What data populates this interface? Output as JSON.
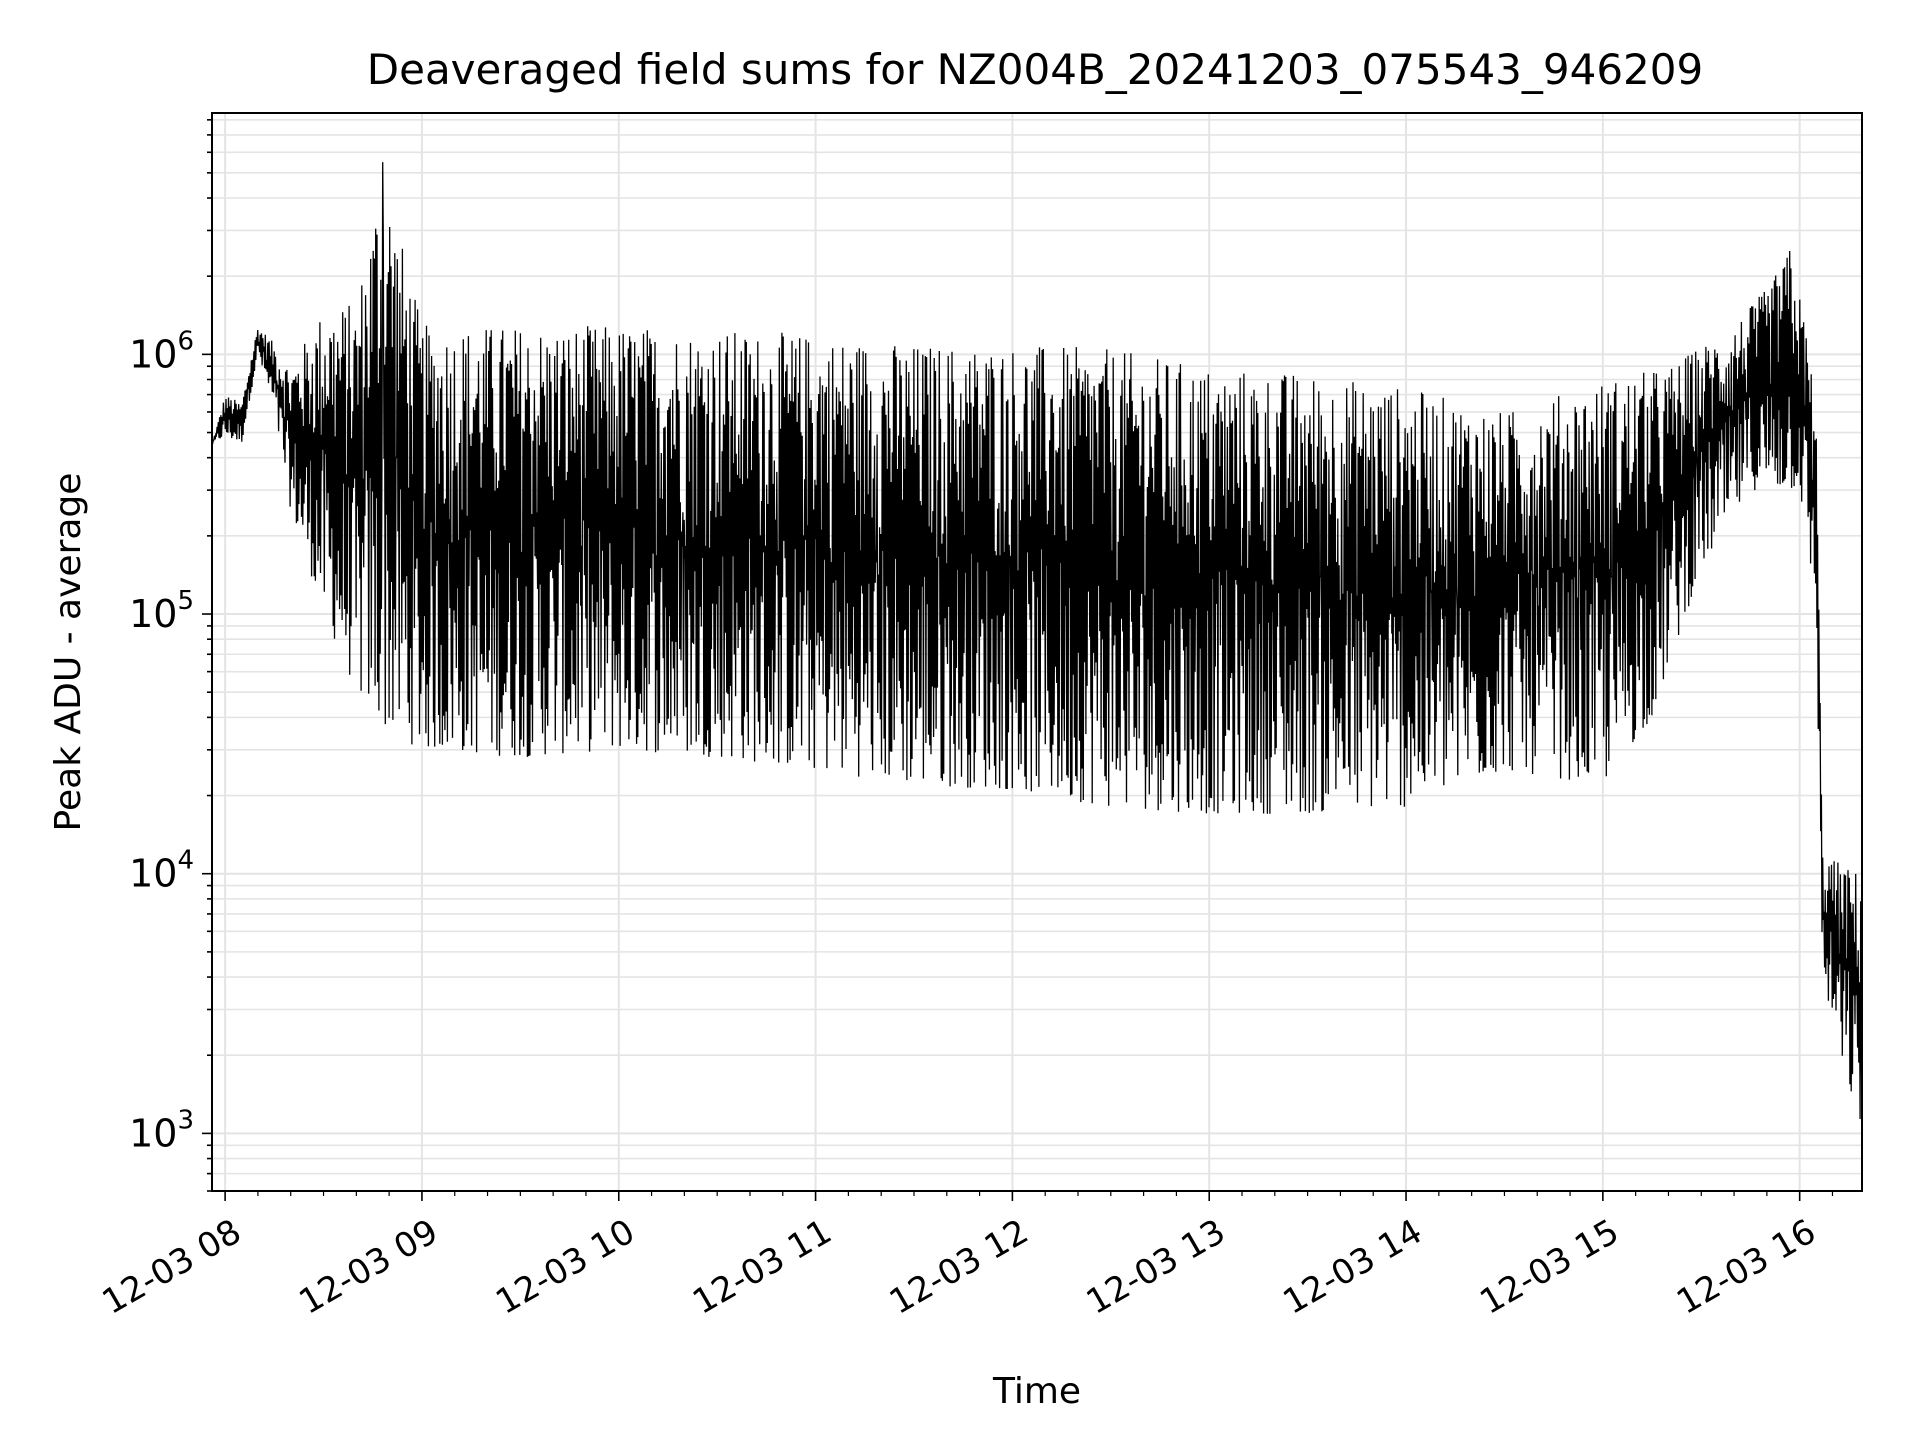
{
  "chart_data": {
    "type": "line",
    "title": "Deaveraged field sums for NZ004B_20241203_075543_946209",
    "xlabel": "Time",
    "ylabel": "Peak ADU - average",
    "xscale": "time",
    "yscale": "log",
    "xlim": [
      "2024-12-03 07:56",
      "2024-12-03 16:19"
    ],
    "ylim": [
      600,
      8500000
    ],
    "grid": true,
    "grid_minor": true,
    "line_color": "#000000",
    "x_ticks": [
      {
        "time": "2024-12-03 08:00",
        "label": "12-03 08"
      },
      {
        "time": "2024-12-03 09:00",
        "label": "12-03 09"
      },
      {
        "time": "2024-12-03 10:00",
        "label": "12-03 10"
      },
      {
        "time": "2024-12-03 11:00",
        "label": "12-03 11"
      },
      {
        "time": "2024-12-03 12:00",
        "label": "12-03 12"
      },
      {
        "time": "2024-12-03 13:00",
        "label": "12-03 13"
      },
      {
        "time": "2024-12-03 14:00",
        "label": "12-03 14"
      },
      {
        "time": "2024-12-03 15:00",
        "label": "12-03 15"
      },
      {
        "time": "2024-12-03 16:00",
        "label": "12-03 16"
      }
    ],
    "y_ticks": [
      {
        "value": 1000,
        "base": "10",
        "exp": "3"
      },
      {
        "value": 10000,
        "base": "10",
        "exp": "4"
      },
      {
        "value": 100000,
        "base": "10",
        "exp": "5"
      },
      {
        "value": 1000000,
        "base": "10",
        "exp": "6"
      }
    ],
    "series": [
      {
        "upper_envelope": [
          [
            "2024-12-03 07:56",
            450000
          ],
          [
            "2024-12-03 08:00",
            700000
          ],
          [
            "2024-12-03 08:05",
            650000
          ],
          [
            "2024-12-03 08:10",
            1300000
          ],
          [
            "2024-12-03 08:15",
            1100000
          ],
          [
            "2024-12-03 08:20",
            900000
          ],
          [
            "2024-12-03 08:30",
            1500000
          ],
          [
            "2024-12-03 08:40",
            1600000
          ],
          [
            "2024-12-03 08:48",
            5500000
          ],
          [
            "2024-12-03 09:00",
            1300000
          ],
          [
            "2024-12-03 09:30",
            1300000
          ],
          [
            "2024-12-03 10:00",
            1300000
          ],
          [
            "2024-12-03 10:30",
            1250000
          ],
          [
            "2024-12-03 11:00",
            1200000
          ],
          [
            "2024-12-03 11:30",
            1100000
          ],
          [
            "2024-12-03 12:00",
            1100000
          ],
          [
            "2024-12-03 12:30",
            1050000
          ],
          [
            "2024-12-03 13:00",
            900000
          ],
          [
            "2024-12-03 13:30",
            850000
          ],
          [
            "2024-12-03 14:00",
            750000
          ],
          [
            "2024-12-03 14:30",
            600000
          ],
          [
            "2024-12-03 15:00",
            800000
          ],
          [
            "2024-12-03 15:20",
            900000
          ],
          [
            "2024-12-03 15:40",
            1300000
          ],
          [
            "2024-12-03 15:50",
            1800000
          ],
          [
            "2024-12-03 15:57",
            2500000
          ],
          [
            "2024-12-03 16:02",
            1300000
          ],
          [
            "2024-12-03 16:05",
            600000
          ],
          [
            "2024-12-03 16:07",
            12000
          ],
          [
            "2024-12-03 16:19",
            10000
          ]
        ],
        "lower_envelope": [
          [
            "2024-12-03 07:56",
            450000
          ],
          [
            "2024-12-03 08:00",
            480000
          ],
          [
            "2024-12-03 08:05",
            450000
          ],
          [
            "2024-12-03 08:10",
            1000000
          ],
          [
            "2024-12-03 08:15",
            600000
          ],
          [
            "2024-12-03 08:20",
            250000
          ],
          [
            "2024-12-03 08:30",
            100000
          ],
          [
            "2024-12-03 08:40",
            50000
          ],
          [
            "2024-12-03 08:50",
            35000
          ],
          [
            "2024-12-03 09:00",
            30000
          ],
          [
            "2024-12-03 09:30",
            28000
          ],
          [
            "2024-12-03 10:00",
            30000
          ],
          [
            "2024-12-03 10:30",
            28000
          ],
          [
            "2024-12-03 11:00",
            25000
          ],
          [
            "2024-12-03 11:30",
            22000
          ],
          [
            "2024-12-03 12:00",
            21000
          ],
          [
            "2024-12-03 12:30",
            18000
          ],
          [
            "2024-12-03 13:00",
            17000
          ],
          [
            "2024-12-03 13:30",
            17000
          ],
          [
            "2024-12-03 14:00",
            18000
          ],
          [
            "2024-12-03 14:30",
            25000
          ],
          [
            "2024-12-03 15:00",
            22000
          ],
          [
            "2024-12-03 15:15",
            40000
          ],
          [
            "2024-12-03 15:30",
            150000
          ],
          [
            "2024-12-03 15:45",
            300000
          ],
          [
            "2024-12-03 16:00",
            300000
          ],
          [
            "2024-12-03 16:05",
            100000
          ],
          [
            "2024-12-03 16:07",
            4000
          ],
          [
            "2024-12-03 16:12",
            2000
          ],
          [
            "2024-12-03 16:19",
            1000
          ]
        ],
        "notable_points": [
          {
            "time": "2024-12-03 08:48",
            "value": 5500000
          },
          {
            "time": "2024-12-03 15:57",
            "value": 2500000
          },
          {
            "time": "2024-12-03 16:19",
            "value": 1000
          }
        ]
      }
    ]
  }
}
